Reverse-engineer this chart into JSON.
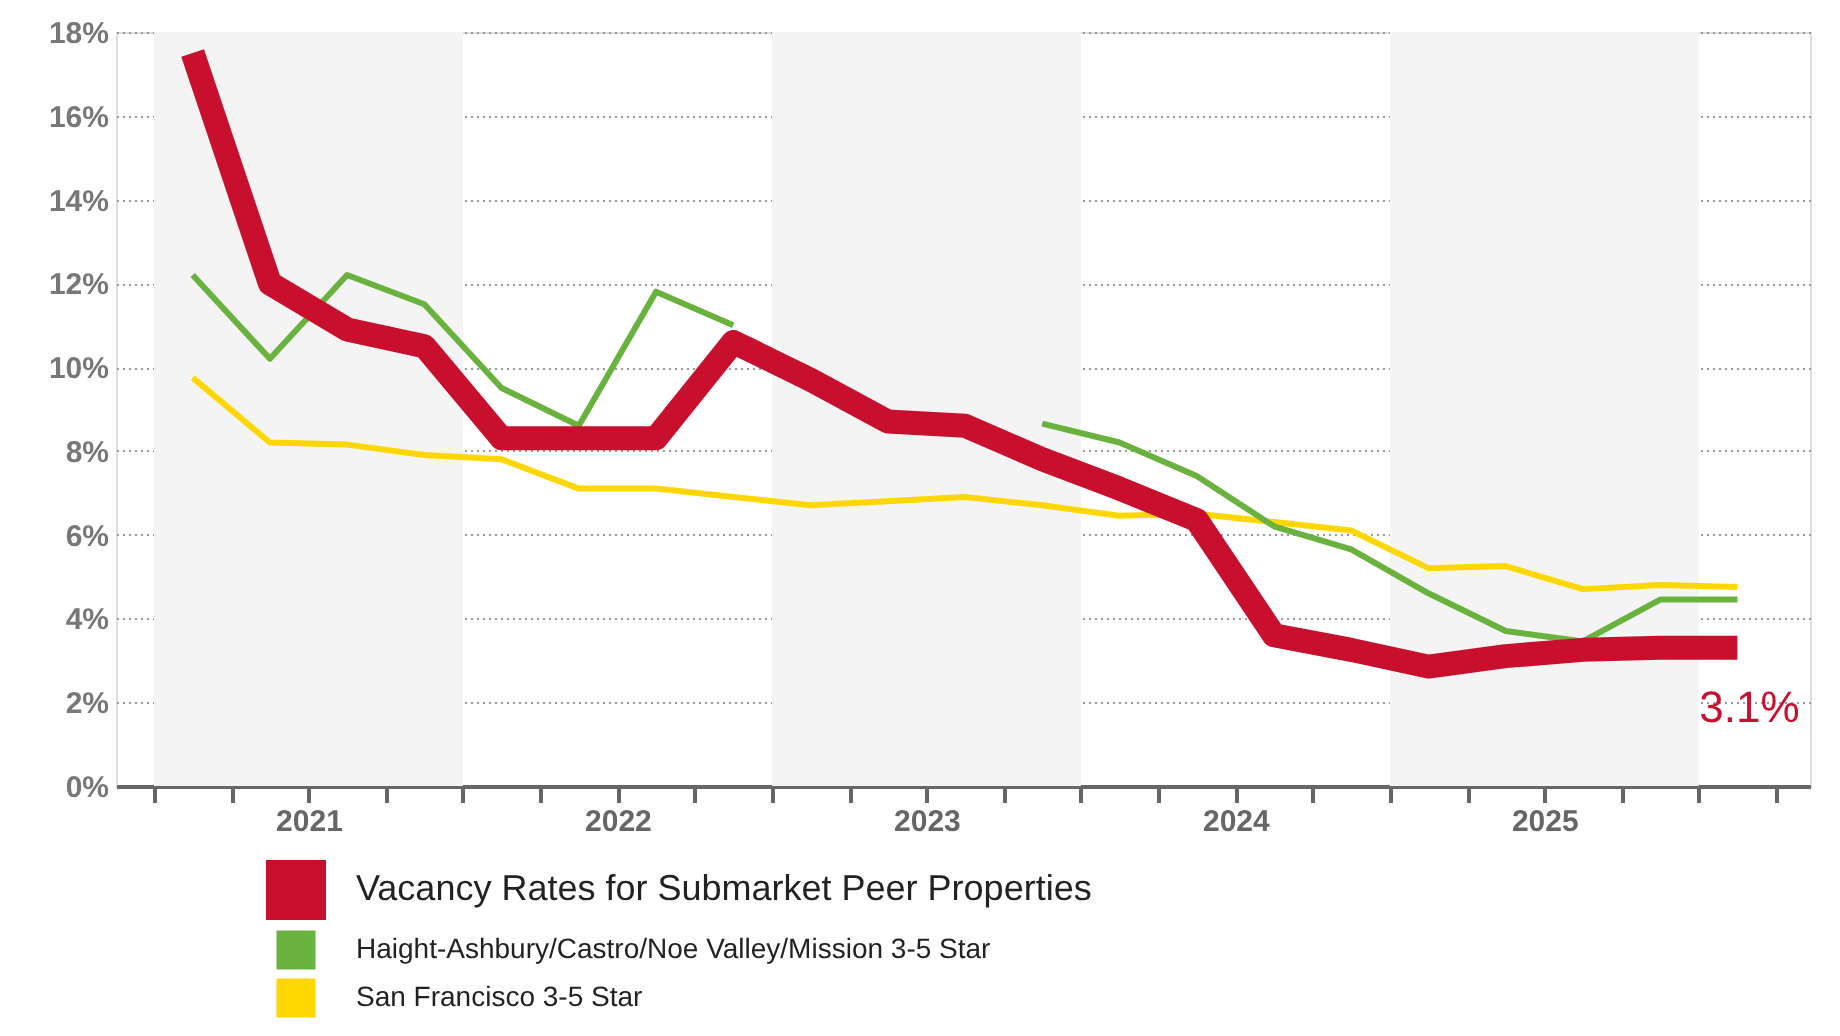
{
  "chart_data": {
    "type": "line",
    "x": [
      2021.125,
      2021.375,
      2021.625,
      2021.875,
      2022.125,
      2022.375,
      2022.625,
      2022.875,
      2023.125,
      2023.375,
      2023.625,
      2023.875,
      2024.125,
      2024.375,
      2024.625,
      2024.875,
      2025.125,
      2025.375,
      2025.625,
      2025.875,
      2026.125
    ],
    "series": [
      {
        "name": "Vacancy Rates for Submarket Peer Properties",
        "color": "#c8102e",
        "values": [
          17.5,
          12.0,
          10.9,
          10.5,
          8.3,
          8.3,
          8.3,
          10.6,
          9.7,
          8.7,
          8.6,
          7.8,
          7.1,
          6.35,
          3.6,
          3.25,
          2.85,
          3.1,
          3.25,
          3.3,
          3.3
        ]
      },
      {
        "name": "Haight-Ashbury/Castro/Noe Valley/Mission 3-5 Star",
        "color": "#6ab23e",
        "values": [
          12.2,
          10.2,
          12.2,
          11.5,
          9.5,
          8.6,
          11.8,
          11.0,
          null,
          null,
          null,
          8.65,
          8.2,
          7.4,
          6.2,
          5.65,
          4.6,
          3.7,
          3.45,
          4.45,
          4.45
        ]
      },
      {
        "name": "San Francisco 3-5 Star",
        "color": "#ffd700",
        "values": [
          9.75,
          8.2,
          8.15,
          7.9,
          7.8,
          7.1,
          7.1,
          6.9,
          6.7,
          6.8,
          6.9,
          6.7,
          6.45,
          6.5,
          6.3,
          6.1,
          5.2,
          5.25,
          4.7,
          4.8,
          4.75
        ]
      }
    ],
    "xlim": [
      2020.877,
      2026.36
    ],
    "xticks": [
      {
        "value": 2021,
        "label": null
      },
      {
        "value": 2021.25,
        "label": null
      },
      {
        "value": 2021.5,
        "label": "2021"
      },
      {
        "value": 2021.75,
        "label": null
      },
      {
        "value": 2022,
        "label": null
      },
      {
        "value": 2022.25,
        "label": null
      },
      {
        "value": 2022.5,
        "label": "2022"
      },
      {
        "value": 2022.75,
        "label": null
      },
      {
        "value": 2023,
        "label": null
      },
      {
        "value": 2023.25,
        "label": null
      },
      {
        "value": 2023.5,
        "label": "2023"
      },
      {
        "value": 2023.75,
        "label": null
      },
      {
        "value": 2024,
        "label": null
      },
      {
        "value": 2024.25,
        "label": null
      },
      {
        "value": 2024.5,
        "label": "2024"
      },
      {
        "value": 2024.75,
        "label": null
      },
      {
        "value": 2025,
        "label": null
      },
      {
        "value": 2025.25,
        "label": null
      },
      {
        "value": 2025.5,
        "label": "2025"
      },
      {
        "value": 2025.75,
        "label": null
      },
      {
        "value": 2026,
        "label": null
      },
      {
        "value": 2026.25,
        "label": null
      }
    ],
    "ylim": [
      0,
      18
    ],
    "yticks": [
      {
        "value": 0,
        "label": "0%"
      },
      {
        "value": 2,
        "label": "2%"
      },
      {
        "value": 4,
        "label": "4%"
      },
      {
        "value": 6,
        "label": "6%"
      },
      {
        "value": 8,
        "label": "8%"
      },
      {
        "value": 10,
        "label": "10%"
      },
      {
        "value": 12,
        "label": "12%"
      },
      {
        "value": 14,
        "label": "14%"
      },
      {
        "value": 16,
        "label": "16%"
      },
      {
        "value": 18,
        "label": "18%"
      }
    ],
    "bands": [
      {
        "axis": "x",
        "from": 2021,
        "to": 2022,
        "color": "#f4f4f4"
      },
      {
        "axis": "x",
        "from": 2023,
        "to": 2024,
        "color": "#f4f4f4"
      },
      {
        "axis": "x",
        "from": 2025,
        "to": 2026,
        "color": "#f4f4f4"
      }
    ],
    "annotations": [
      "3.1%"
    ],
    "grid": "y",
    "legend": "bottom",
    "line_style": "solid",
    "marker": "none"
  }
}
